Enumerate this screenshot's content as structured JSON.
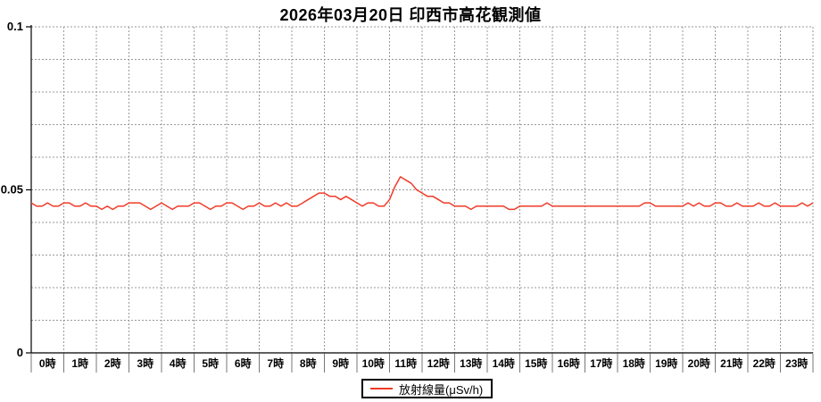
{
  "window": {
    "background": "#ffffff"
  },
  "header": {
    "title": "2026年03月20日 印西市高花観測値"
  },
  "legend": {
    "label": "放射線量(μSv/h)",
    "line_color": "#f03b28"
  },
  "axes": {
    "y_tick_labels": [
      "0",
      "0.05",
      "0.1"
    ],
    "x_tick_labels": [
      "0時",
      "1時",
      "2時",
      "3時",
      "4時",
      "5時",
      "6時",
      "7時",
      "8時",
      "9時",
      "10時",
      "11時",
      "12時",
      "13時",
      "14時",
      "15時",
      "16時",
      "17時",
      "18時",
      "19時",
      "20時",
      "21時",
      "22時",
      "23時"
    ]
  },
  "colors": {
    "grid": "#999999",
    "axis": "#000000",
    "tick_separator": "#777777",
    "text": "#000000"
  },
  "chart_data": {
    "type": "line",
    "title": "2026年03月20日 印西市高花観測値",
    "xlabel": "",
    "ylabel": "放射線量(μSv/h)",
    "ylim": [
      0,
      0.1
    ],
    "y_ticks": [
      0,
      0.05,
      0.1
    ],
    "y_tick_labels": [
      "0",
      "0.05",
      "0.1"
    ],
    "y_grid_step": 0.01,
    "x_hours": 24,
    "x_grid_step_hours": 1,
    "x_tick_labels": [
      "0時",
      "1時",
      "2時",
      "3時",
      "4時",
      "5時",
      "6時",
      "7時",
      "8時",
      "9時",
      "10時",
      "11時",
      "12時",
      "13時",
      "14時",
      "15時",
      "16時",
      "17時",
      "18時",
      "19時",
      "20時",
      "21時",
      "22時",
      "23時"
    ],
    "grid": "dashed",
    "legend_position": "bottom-center",
    "series": [
      {
        "name": "放射線量(μSv/h)",
        "color": "#f03b28",
        "unit": "μSv/h",
        "interval_minutes": 10,
        "start_time": "0:00",
        "end_time": "24:00",
        "values": [
          0.046,
          0.045,
          0.045,
          0.046,
          0.045,
          0.045,
          0.046,
          0.046,
          0.045,
          0.045,
          0.046,
          0.045,
          0.045,
          0.044,
          0.045,
          0.044,
          0.045,
          0.045,
          0.046,
          0.046,
          0.046,
          0.045,
          0.044,
          0.045,
          0.046,
          0.045,
          0.044,
          0.045,
          0.045,
          0.045,
          0.046,
          0.046,
          0.045,
          0.044,
          0.045,
          0.045,
          0.046,
          0.046,
          0.045,
          0.044,
          0.045,
          0.045,
          0.046,
          0.045,
          0.045,
          0.046,
          0.045,
          0.046,
          0.045,
          0.045,
          0.046,
          0.047,
          0.048,
          0.049,
          0.049,
          0.048,
          0.048,
          0.047,
          0.048,
          0.047,
          0.046,
          0.045,
          0.046,
          0.046,
          0.045,
          0.045,
          0.047,
          0.051,
          0.054,
          0.053,
          0.052,
          0.05,
          0.049,
          0.048,
          0.048,
          0.047,
          0.046,
          0.046,
          0.045,
          0.045,
          0.045,
          0.044,
          0.045,
          0.045,
          0.045,
          0.045,
          0.045,
          0.045,
          0.044,
          0.044,
          0.045,
          0.045,
          0.045,
          0.045,
          0.045,
          0.046,
          0.045,
          0.045,
          0.045,
          0.045,
          0.045,
          0.045,
          0.045,
          0.045,
          0.045,
          0.045,
          0.045,
          0.045,
          0.045,
          0.045,
          0.045,
          0.045,
          0.045,
          0.046,
          0.046,
          0.045,
          0.045,
          0.045,
          0.045,
          0.045,
          0.045,
          0.046,
          0.045,
          0.046,
          0.045,
          0.045,
          0.046,
          0.046,
          0.045,
          0.045,
          0.046,
          0.045,
          0.045,
          0.045,
          0.046,
          0.045,
          0.045,
          0.046,
          0.045,
          0.045,
          0.045,
          0.045,
          0.046,
          0.045,
          0.046
        ]
      }
    ]
  }
}
